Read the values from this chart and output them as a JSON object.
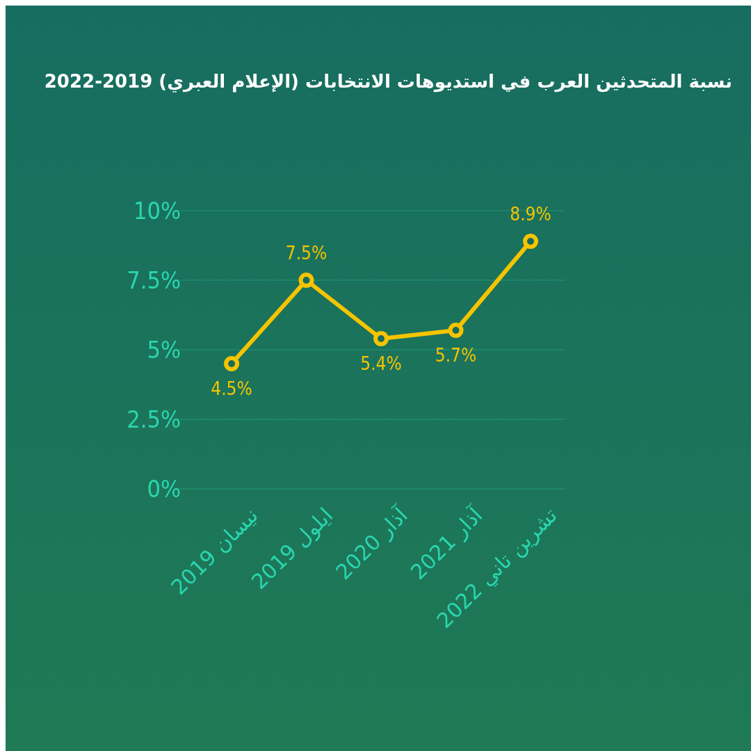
{
  "chart_data": {
    "type": "line",
    "title": "نسبة المتحدثين العرب في استديوهات الانتخابات (الإعلام العبري) 2019-2022",
    "categories": [
      "نيسان 2019",
      "ايلول 2019",
      "آذار 2020",
      "آذار 2021",
      "تشرين تاني 2022"
    ],
    "series": [
      {
        "color": "#f5c400",
        "values": [
          4.5,
          7.5,
          5.4,
          5.7,
          8.9
        ],
        "value_labels": [
          "4.5%",
          "7.5%",
          "5.4%",
          "5.7%",
          "8.9%"
        ]
      }
    ],
    "ylim": [
      0,
      10
    ],
    "yticks": [
      {
        "value": 0,
        "label": "0%"
      },
      {
        "value": 2.5,
        "label": "2.5%"
      },
      {
        "value": 5,
        "label": "5%"
      },
      {
        "value": 7.5,
        "label": "7.5%"
      },
      {
        "value": 10,
        "label": "10%"
      }
    ],
    "grid": "y",
    "marker": "circle",
    "line_style": "solid"
  }
}
